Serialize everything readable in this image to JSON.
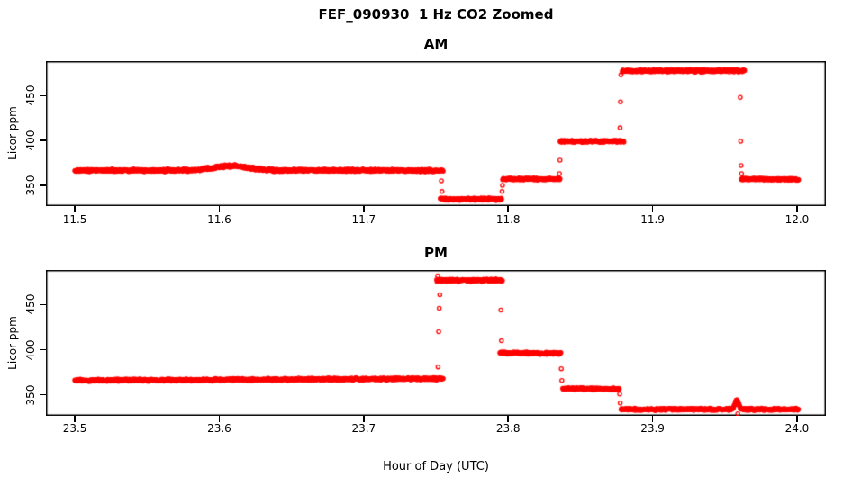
{
  "title": "FEF_090930  1 Hz CO2 Zoomed",
  "xlabel": "Hour of Day (UTC)",
  "colors": {
    "points": "#ff0000",
    "axis": "#000000",
    "background": "#ffffff"
  },
  "chart_data": [
    {
      "type": "scatter",
      "panel": "AM",
      "title": "AM",
      "ylabel": "Licor ppm",
      "marker": "open-circle",
      "sample_rate_hz": 1,
      "grid": false,
      "legend": false,
      "xlim": [
        11.48,
        12.02
      ],
      "ylim": [
        326.8,
        488.4
      ],
      "xticks": [
        11.5,
        11.6,
        11.7,
        11.8,
        11.9,
        12.0
      ],
      "xtick_labels": [
        "11.5",
        "11.6",
        "11.7",
        "11.8",
        "11.9",
        "12.0"
      ],
      "yticks": [
        350,
        400,
        450
      ],
      "ytick_labels": [
        "350",
        "400",
        "450"
      ],
      "segments": [
        {
          "x0": 11.5,
          "x1": 11.755,
          "y0": 366.5,
          "y1": 366.5,
          "noise": 1.7,
          "bump": {
            "center": 11.608,
            "sigma": 0.012,
            "amp": 5
          }
        },
        {
          "x0": 11.753,
          "x1": 11.7955,
          "y0": 334.5,
          "y1": 334.5,
          "noise": 1.5
        },
        {
          "x0": 11.7962,
          "x1": 11.8358,
          "y0": 357.0,
          "y1": 357.0,
          "noise": 1.3
        },
        {
          "x0": 11.836,
          "x1": 11.8803,
          "y0": 399.0,
          "y1": 399.0,
          "noise": 1.4
        },
        {
          "x0": 11.879,
          "x1": 11.9638,
          "y0": 477.5,
          "y1": 477.8,
          "noise": 1.7
        },
        {
          "x0": 11.9614,
          "x1": 12.001,
          "y0": 357.0,
          "y1": 356.5,
          "noise": 1.3
        }
      ],
      "transition_points": [
        [
          11.7538,
          355
        ],
        [
          11.7542,
          343
        ],
        [
          11.7958,
          343
        ],
        [
          11.7961,
          350
        ],
        [
          11.8355,
          363
        ],
        [
          11.8359,
          378
        ],
        [
          11.8775,
          414
        ],
        [
          11.8778,
          443
        ],
        [
          11.8781,
          473
        ],
        [
          11.9607,
          448
        ],
        [
          11.961,
          399
        ],
        [
          11.9613,
          372
        ],
        [
          11.9616,
          363
        ]
      ]
    },
    {
      "type": "scatter",
      "panel": "PM",
      "title": "PM",
      "ylabel": "Licor ppm",
      "marker": "open-circle",
      "sample_rate_hz": 1,
      "grid": false,
      "legend": false,
      "xlim": [
        23.48,
        24.02
      ],
      "ylim": [
        326.8,
        488.4
      ],
      "xticks": [
        23.5,
        23.6,
        23.7,
        23.8,
        23.9,
        24.0
      ],
      "xtick_labels": [
        "23.5",
        "23.6",
        "23.7",
        "23.8",
        "23.9",
        "24.0"
      ],
      "yticks": [
        350,
        400,
        450
      ],
      "ytick_labels": [
        "350",
        "400",
        "450"
      ],
      "segments": [
        {
          "x0": 23.5,
          "x1": 23.755,
          "y0": 366.0,
          "y1": 368.0,
          "noise": 1.6
        },
        {
          "x0": 23.7505,
          "x1": 23.7961,
          "y0": 477.0,
          "y1": 477.0,
          "noise": 1.7
        },
        {
          "x0": 23.7943,
          "x1": 23.8365,
          "y0": 396.5,
          "y1": 396.0,
          "noise": 1.5
        },
        {
          "x0": 23.8378,
          "x1": 23.877,
          "y0": 357.0,
          "y1": 356.5,
          "noise": 1.3
        },
        {
          "x0": 23.8782,
          "x1": 24.001,
          "y0": 334.0,
          "y1": 334.0,
          "noise": 1.4,
          "bump": {
            "center": 23.9583,
            "sigma": 0.0013,
            "amp": 10
          }
        }
      ],
      "transition_points": [
        [
          23.7512,
          482
        ],
        [
          23.7515,
          381
        ],
        [
          23.7519,
          420
        ],
        [
          23.7523,
          446
        ],
        [
          23.7527,
          461
        ],
        [
          23.795,
          444
        ],
        [
          23.7954,
          410
        ],
        [
          23.8368,
          379
        ],
        [
          23.8372,
          366
        ],
        [
          23.8772,
          351
        ],
        [
          23.8776,
          341
        ],
        [
          23.959,
          329
        ]
      ]
    }
  ]
}
